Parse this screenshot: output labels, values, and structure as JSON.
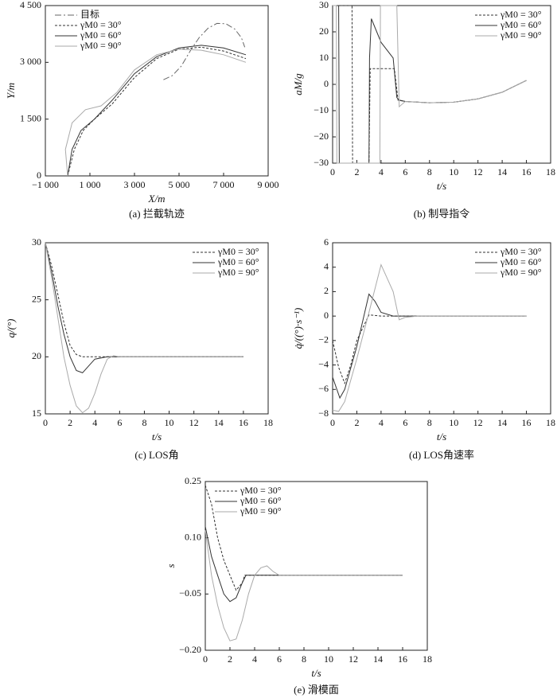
{
  "chart_data": [
    {
      "type": "line",
      "caption": "(a) 拦截轨迹",
      "xlabel": "X/m",
      "ylabel": "Y/m",
      "legend": "upper left",
      "xlim": [
        -1000,
        9000
      ],
      "ylim": [
        0,
        4500
      ],
      "xticks": [
        {
          "value": -1000,
          "label": "−1 000"
        },
        {
          "value": 1000,
          "label": "1 000"
        },
        {
          "value": 3000,
          "label": "3 000"
        },
        {
          "value": 5000,
          "label": "5 000"
        },
        {
          "value": 7000,
          "label": "7 000"
        },
        {
          "value": 9000,
          "label": "9 000"
        }
      ],
      "yticks": [
        0,
        {
          "value": 1500,
          "label": "1 500"
        },
        {
          "value": 3000,
          "label": "3 000"
        },
        {
          "value": 4500,
          "label": "4 500"
        }
      ],
      "series": [
        {
          "name": "目标",
          "color": "#666666",
          "dash": "dashdot",
          "x": [
            4300,
            4700,
            5100,
            5500,
            5900,
            6300,
            6700,
            7100,
            7500,
            7800,
            7950
          ],
          "values": [
            2540,
            2650,
            2900,
            3300,
            3650,
            3900,
            4030,
            4020,
            3880,
            3650,
            3400
          ]
        },
        {
          "name": "γM0 = 30°",
          "color": "#333333",
          "dash": "dashed",
          "x": [
            0,
            300,
            700,
            1200,
            2000,
            3000,
            4000,
            5000,
            6000,
            7000,
            8000
          ],
          "values": [
            0,
            700,
            1200,
            1500,
            1900,
            2600,
            3100,
            3350,
            3400,
            3300,
            3100
          ]
        },
        {
          "name": "γM0 = 60°",
          "color": "#333333",
          "dash": "solid",
          "x": [
            0,
            200,
            600,
            1200,
            2000,
            3000,
            4000,
            5000,
            6000,
            7000,
            8000
          ],
          "values": [
            0,
            700,
            1200,
            1500,
            2000,
            2700,
            3150,
            3380,
            3450,
            3380,
            3200
          ]
        },
        {
          "name": "γM0 = 90°",
          "color": "#aaaaaa",
          "dash": "solid",
          "x": [
            0,
            -100,
            200,
            800,
            1500,
            2200,
            3000,
            4000,
            5000,
            6000,
            7000,
            8000
          ],
          "values": [
            0,
            700,
            1400,
            1750,
            1850,
            2200,
            2800,
            3200,
            3350,
            3320,
            3200,
            3000
          ]
        }
      ]
    },
    {
      "type": "line",
      "caption": "(b) 制导指令",
      "xlabel": "t/s",
      "ylabel": "aM/g",
      "legend": "upper right",
      "xlim": [
        0,
        18
      ],
      "ylim": [
        -30,
        30
      ],
      "xticks": [
        0,
        2,
        4,
        6,
        8,
        10,
        12,
        14,
        16,
        18
      ],
      "yticks": [
        {
          "value": -30,
          "label": "−30"
        },
        {
          "value": -20,
          "label": "−20"
        },
        {
          "value": -10,
          "label": "−10"
        },
        0,
        10,
        20,
        30
      ],
      "series": [
        {
          "name": "γM0 = 30°",
          "color": "#333333",
          "dash": "dashed",
          "x": [
            0,
            1.6,
            1.65,
            3.0,
            3.1,
            5.1,
            5.4,
            6,
            8,
            10,
            12,
            14,
            16
          ],
          "values": [
            30,
            30,
            -30,
            -30,
            6,
            6,
            -6,
            -6.5,
            -7,
            -6.8,
            -5.5,
            -3,
            1.5
          ]
        },
        {
          "name": "γM0 = 60°",
          "color": "#333333",
          "dash": "solid",
          "x": [
            0,
            0.5,
            0.55,
            3.0,
            3.05,
            3.2,
            4,
            5,
            5.3,
            5.5,
            6,
            8,
            10,
            12,
            14,
            16
          ],
          "values": [
            30,
            30,
            -30,
            -30,
            10,
            25,
            16,
            10,
            -5,
            -6,
            -6.5,
            -7,
            -6.8,
            -5.5,
            -3,
            1.5
          ]
        },
        {
          "name": "γM0 = 90°",
          "color": "#aaaaaa",
          "dash": "solid",
          "x": [
            0,
            0.3,
            0.35,
            3.9,
            3.95,
            5.3,
            5.5,
            6,
            8,
            10,
            12,
            14,
            16
          ],
          "values": [
            30,
            30,
            -30,
            -30,
            30,
            30,
            -8.5,
            -6.5,
            -7,
            -6.8,
            -5.5,
            -3,
            1.5
          ]
        }
      ]
    },
    {
      "type": "line",
      "caption": "(c) LOS角",
      "xlabel": "t/s",
      "ylabel": "q/(°)",
      "legend": "upper right",
      "xlim": [
        0,
        18
      ],
      "ylim": [
        15,
        30
      ],
      "xticks": [
        0,
        2,
        4,
        6,
        8,
        10,
        12,
        14,
        16,
        18
      ],
      "yticks": [
        15,
        20,
        25,
        30
      ],
      "series": [
        {
          "name": "γM0 = 30°",
          "color": "#333333",
          "dash": "dashed",
          "x": [
            0,
            0.5,
            1,
            1.5,
            2,
            2.5,
            3,
            4,
            6,
            8,
            16
          ],
          "values": [
            30,
            28,
            25.5,
            23,
            21,
            20.2,
            20,
            20,
            20,
            20,
            20
          ]
        },
        {
          "name": "γM0 = 60°",
          "color": "#333333",
          "dash": "solid",
          "x": [
            0,
            0.5,
            1,
            1.5,
            2,
            2.5,
            3,
            3.5,
            4,
            5,
            6,
            16
          ],
          "values": [
            30,
            27.5,
            24.5,
            22,
            20,
            18.8,
            18.6,
            19.2,
            19.8,
            20,
            20,
            20
          ]
        },
        {
          "name": "γM0 = 90°",
          "color": "#aaaaaa",
          "dash": "solid",
          "x": [
            0,
            0.5,
            1,
            1.5,
            2,
            2.5,
            3,
            3.5,
            4,
            4.5,
            5,
            5.5,
            6,
            16
          ],
          "values": [
            30,
            27,
            23.5,
            20,
            17.5,
            15.7,
            15.1,
            15.5,
            16.8,
            18.5,
            19.8,
            20.1,
            20,
            20
          ]
        }
      ]
    },
    {
      "type": "line",
      "caption": "(d) LOS角速率",
      "xlabel": "t/s",
      "ylabel": "q̇/((°)·s⁻¹)",
      "legend": "upper right",
      "xlim": [
        0,
        18
      ],
      "ylim": [
        -8,
        6
      ],
      "xticks": [
        0,
        2,
        4,
        6,
        8,
        10,
        12,
        14,
        16,
        18
      ],
      "yticks": [
        {
          "value": -8,
          "label": "−8"
        },
        {
          "value": -6,
          "label": "−6"
        },
        {
          "value": -4,
          "label": "−4"
        },
        {
          "value": -2,
          "label": "−2"
        },
        0,
        2,
        4,
        6
      ],
      "series": [
        {
          "name": "γM0 = 30°",
          "color": "#333333",
          "dash": "dashed",
          "x": [
            0,
            0.5,
            1,
            1.5,
            2,
            3,
            4,
            6,
            16
          ],
          "values": [
            -2,
            -4.2,
            -5.5,
            -4,
            -2,
            0.1,
            0,
            0,
            0
          ]
        },
        {
          "name": "γM0 = 60°",
          "color": "#333333",
          "dash": "solid",
          "x": [
            0,
            0.6,
            1,
            2,
            3,
            3.5,
            4,
            5,
            6,
            16
          ],
          "values": [
            -5,
            -6.7,
            -6,
            -2.5,
            1.8,
            1.2,
            0.3,
            0,
            0,
            0
          ]
        },
        {
          "name": "γM0 = 90°",
          "color": "#aaaaaa",
          "dash": "solid",
          "x": [
            0,
            0.5,
            1,
            2,
            3,
            4,
            5,
            5.5,
            6,
            7,
            16
          ],
          "values": [
            -7.7,
            -7.8,
            -7,
            -3.5,
            0.3,
            4.2,
            2,
            -0.3,
            -0.1,
            0,
            0
          ]
        }
      ]
    },
    {
      "type": "line",
      "caption": "(e) 滑模面",
      "xlabel": "t/s",
      "ylabel": "s",
      "legend": "upper left",
      "xlim": [
        0,
        18
      ],
      "ylim": [
        -0.2,
        0.25
      ],
      "xticks": [
        0,
        2,
        4,
        6,
        8,
        10,
        12,
        14,
        16,
        18
      ],
      "yticks": [
        {
          "value": -0.2,
          "label": "−0.20"
        },
        {
          "value": -0.05,
          "label": "−0.05"
        },
        {
          "value": 0.1,
          "label": "0.10"
        },
        0.25
      ],
      "series": [
        {
          "name": "γM0 = 30°",
          "color": "#333333",
          "dash": "dashed",
          "x": [
            0,
            0.5,
            1,
            1.5,
            2,
            2.5,
            3,
            3.2,
            16
          ],
          "values": [
            0.24,
            0.19,
            0.1,
            0.04,
            0,
            -0.04,
            -0.02,
            0,
            0
          ]
        },
        {
          "name": "γM0 = 60°",
          "color": "#333333",
          "dash": "solid",
          "x": [
            0,
            0.5,
            1,
            1.5,
            2,
            2.5,
            3,
            3.3,
            16
          ],
          "values": [
            0.13,
            0.05,
            0,
            -0.05,
            -0.07,
            -0.06,
            -0.02,
            0,
            0
          ]
        },
        {
          "name": "γM0 = 90°",
          "color": "#aaaaaa",
          "dash": "solid",
          "x": [
            0,
            0.5,
            1,
            1.5,
            2,
            2.5,
            3,
            3.5,
            4,
            4.5,
            5,
            5.5,
            6,
            16
          ],
          "values": [
            0.12,
            0,
            -0.08,
            -0.14,
            -0.175,
            -0.17,
            -0.12,
            -0.05,
            0,
            0.02,
            0.025,
            0.01,
            0,
            0
          ]
        }
      ]
    }
  ]
}
